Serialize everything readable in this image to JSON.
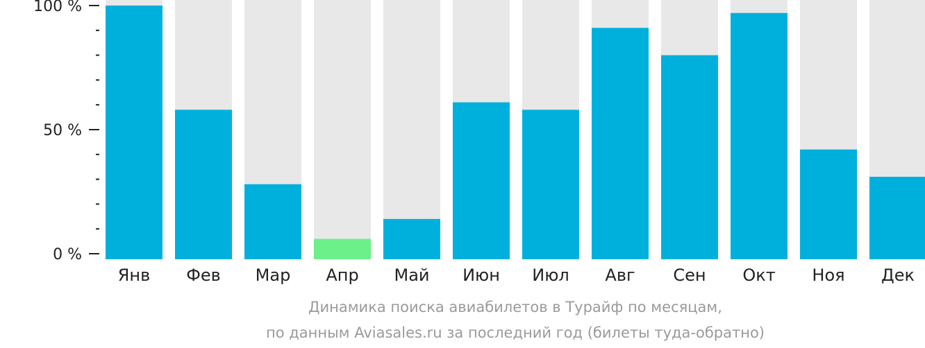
{
  "chart_data": {
    "type": "bar",
    "categories": [
      "Янв",
      "Фев",
      "Мар",
      "Апр",
      "Май",
      "Июн",
      "Июл",
      "Авг",
      "Сен",
      "Окт",
      "Ноя",
      "Дек"
    ],
    "values": [
      100,
      58,
      28,
      6,
      14,
      61,
      58,
      91,
      80,
      97,
      42,
      31
    ],
    "ylim": [
      0,
      100
    ],
    "y_ticks": [
      {
        "value": 0,
        "label": "0 %"
      },
      {
        "value": 50,
        "label": "50 %"
      },
      {
        "value": 100,
        "label": "100 %"
      }
    ],
    "y_minor_step": 10,
    "highlight_index": 3,
    "colors": {
      "bar": "#00b0dc",
      "highlight": "#6cf08a",
      "track": "#e8e8e8",
      "axis": "#222222"
    },
    "caption": [
      "Динамика поиска авиабилетов в Турайф по месяцам,",
      "по данным Aviasales.ru за последний год (билеты туда-обратно)"
    ]
  }
}
